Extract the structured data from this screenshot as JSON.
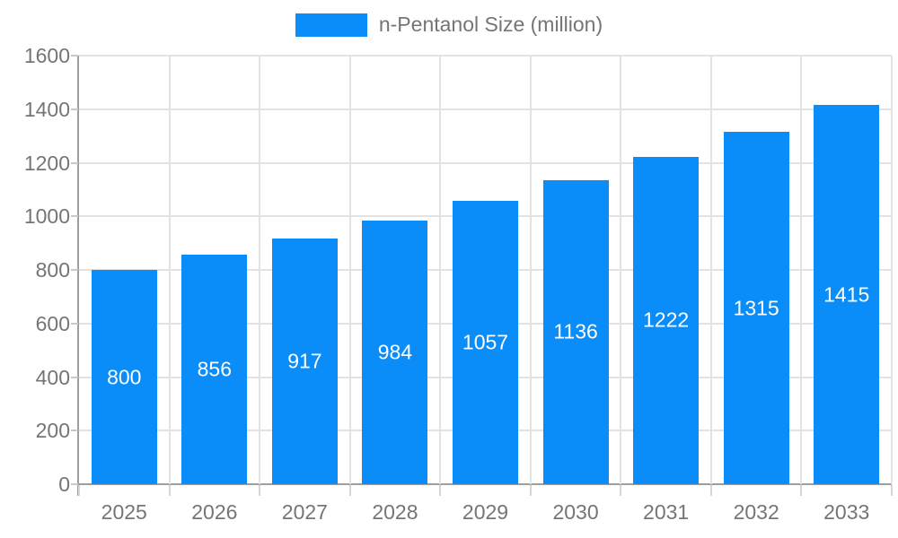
{
  "chart_data": {
    "type": "bar",
    "title": "n-Pentanol Size (million)",
    "categories": [
      "2025",
      "2026",
      "2027",
      "2028",
      "2029",
      "2030",
      "2031",
      "2032",
      "2033"
    ],
    "series": [
      {
        "name": "n-Pentanol Size (million)",
        "values": [
          800,
          856,
          917,
          984,
          1057,
          1136,
          1222,
          1315,
          1415
        ]
      }
    ],
    "xlabel": "",
    "ylabel": "",
    "ylim": [
      0,
      1600
    ],
    "ytick_step": 200,
    "grid": true,
    "legend_position": "top",
    "bar_labels_shown": true,
    "colors": {
      "bar": "#0a8df9",
      "bar_label_text": "#ffffff",
      "axis_line": "#9e9e9e",
      "gridline": "#e3e3e3",
      "tick_text": "#757575",
      "legend_text": "#757575",
      "background": "#ffffff"
    }
  }
}
